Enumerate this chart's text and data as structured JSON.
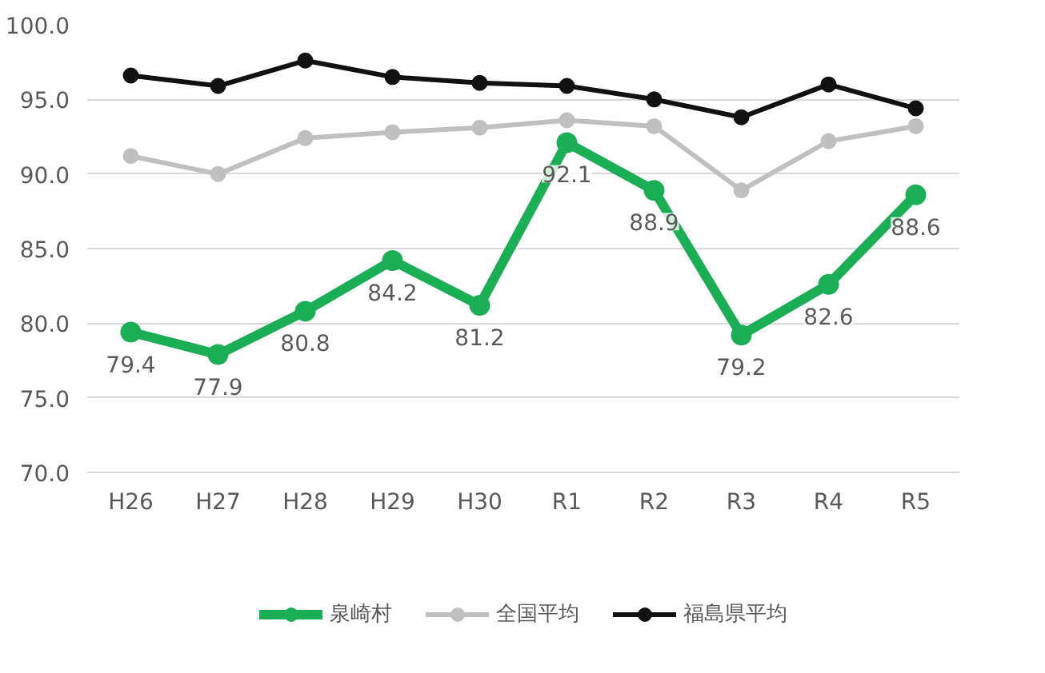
{
  "chart_data": {
    "type": "line",
    "categories": [
      "H26",
      "H27",
      "H28",
      "H29",
      "H30",
      "R1",
      "R2",
      "R3",
      "R4",
      "R5"
    ],
    "series": [
      {
        "name": "泉崎村",
        "color": "#1aaf54",
        "values": [
          79.4,
          77.9,
          80.8,
          84.2,
          81.2,
          92.1,
          88.9,
          79.2,
          82.6,
          88.6
        ],
        "value_labels": [
          "79.4",
          "77.9",
          "80.8",
          "84.2",
          "81.2",
          "92.1",
          "88.9",
          "79.2",
          "82.6",
          "88.6"
        ]
      },
      {
        "name": "全国平均",
        "color": "#c0c0c0",
        "values": [
          91.2,
          90.0,
          92.4,
          92.8,
          93.1,
          93.6,
          93.2,
          88.9,
          92.2,
          93.2
        ]
      },
      {
        "name": "福島県平均",
        "color": "#111111",
        "values": [
          96.6,
          95.9,
          97.6,
          96.5,
          96.1,
          95.9,
          95.0,
          93.8,
          96.0,
          94.4
        ]
      }
    ],
    "ylim": [
      70,
      100
    ],
    "yticks": [
      {
        "value": 70,
        "label": "70.0"
      },
      {
        "value": 75,
        "label": "75.0"
      },
      {
        "value": 80,
        "label": "80.0"
      },
      {
        "value": 85,
        "label": "85.0"
      },
      {
        "value": 90,
        "label": "90.0"
      },
      {
        "value": 95,
        "label": "95.0"
      },
      {
        "value": 100,
        "label": "100.0"
      }
    ],
    "grid": "y",
    "legend": "bottom",
    "marker": "circle",
    "line_style": "solid"
  }
}
